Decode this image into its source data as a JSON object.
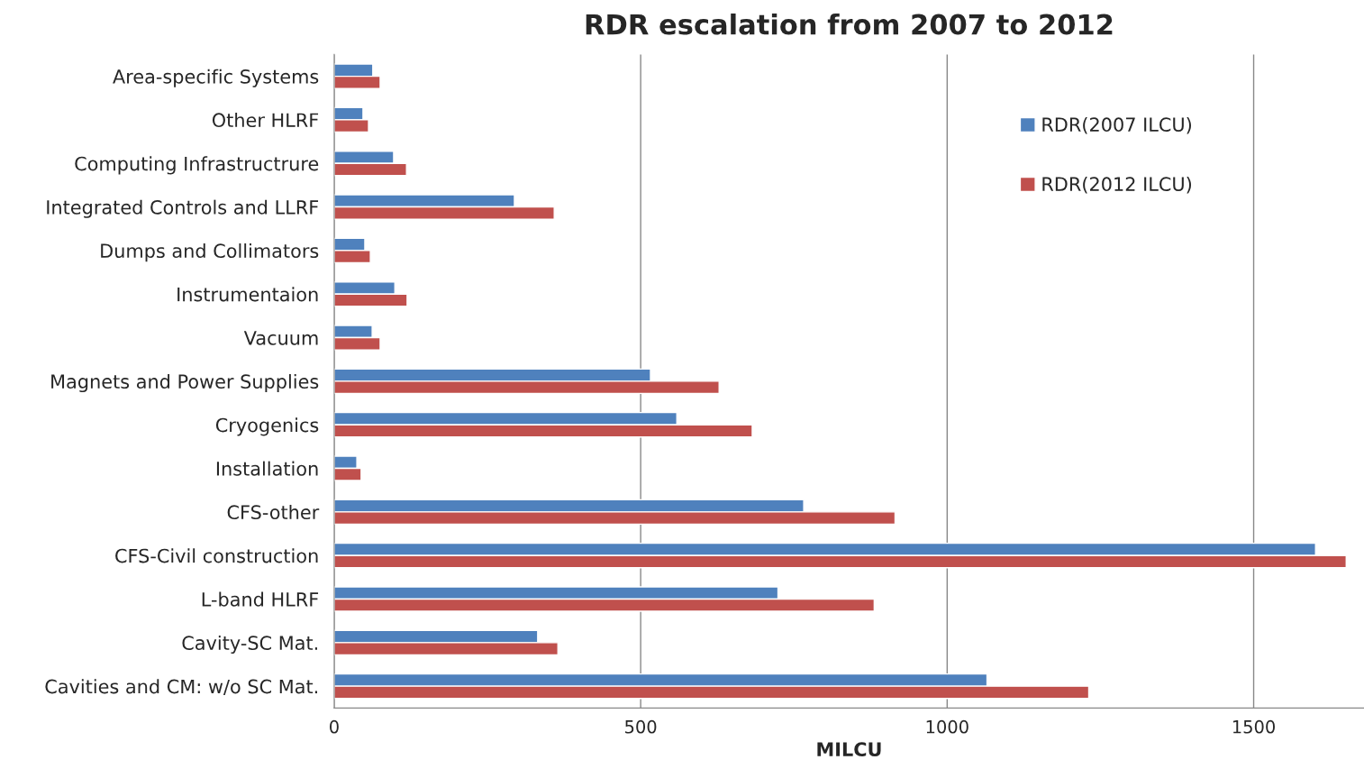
{
  "chart_data": {
    "type": "bar",
    "orientation": "horizontal",
    "title": "RDR escalation from 2007 to 2012",
    "xlabel": "MILCU",
    "categories": [
      "Area-specific Systems",
      "Other HLRF",
      "Computing Infrastructrure",
      "Integrated Controls and LLRF",
      "Dumps and Collimators",
      "Instrumentaion",
      "Vacuum",
      "Magnets and Power Supplies",
      "Cryogenics",
      "Installation",
      "CFS-other",
      "CFS-Civil construction",
      "L-band HLRF",
      "Cavity-SC Mat.",
      "Cavities and CM: w/o SC Mat."
    ],
    "series": [
      {
        "name": "RDR(2007 ILCU)",
        "color": "#4f81bd",
        "values": [
          63,
          47,
          97,
          294,
          50,
          99,
          62,
          516,
          559,
          37,
          766,
          1601,
          724,
          332,
          1065
        ]
      },
      {
        "name": "RDR(2012 ILCU)",
        "color": "#c0504d",
        "values": [
          75,
          56,
          118,
          359,
          59,
          119,
          75,
          628,
          682,
          44,
          915,
          1651,
          881,
          365,
          1231
        ]
      }
    ],
    "xlim": [
      0,
      1680
    ],
    "xticks": [
      0,
      500,
      1000,
      1500
    ],
    "grid": "x",
    "legend": "top right"
  }
}
